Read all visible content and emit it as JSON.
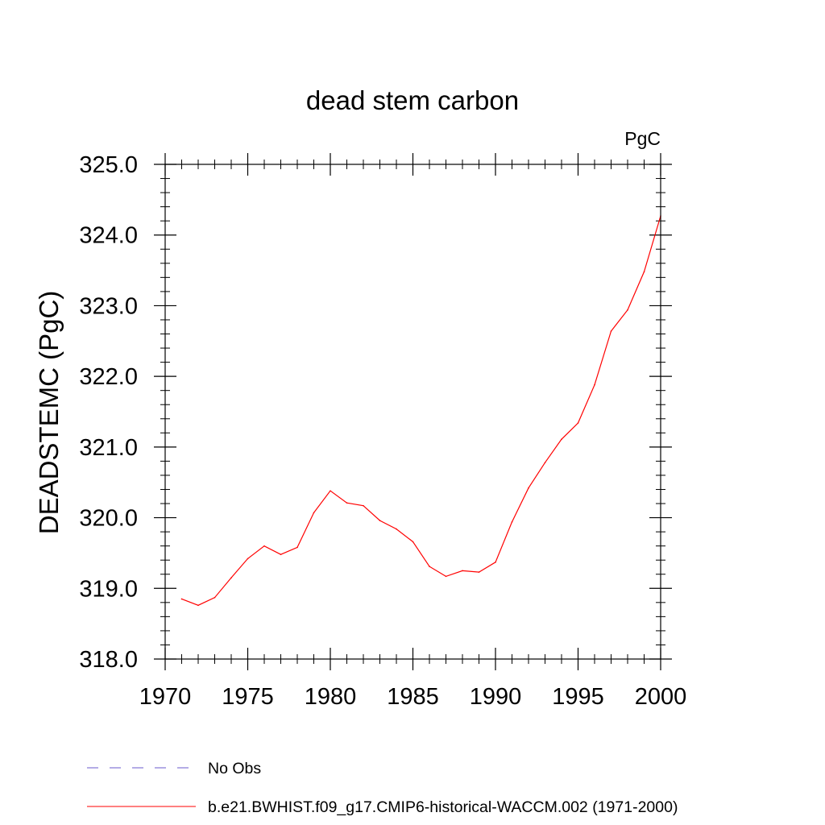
{
  "chart_data": {
    "type": "line",
    "title": "dead stem carbon",
    "units_label": "PgC",
    "xlabel": "",
    "ylabel": "DEADSTEMC  (PgC)",
    "xlim": [
      1970,
      2000
    ],
    "ylim": [
      318.0,
      325.0
    ],
    "x_ticks": [
      1970,
      1975,
      1980,
      1985,
      1990,
      1995,
      2000
    ],
    "y_ticks": [
      "318.0",
      "319.0",
      "320.0",
      "321.0",
      "322.0",
      "323.0",
      "324.0",
      "325.0"
    ],
    "grid": false,
    "legend_position": "bottom-left",
    "series": [
      {
        "name": "b.e21.BWHIST.f09_g17.CMIP6-historical-WACCM.002 (1971-2000)",
        "color": "#ff0000",
        "style": "solid",
        "x": [
          1971,
          1972,
          1973,
          1974,
          1975,
          1976,
          1977,
          1978,
          1979,
          1980,
          1981,
          1982,
          1983,
          1984,
          1985,
          1986,
          1987,
          1988,
          1989,
          1990,
          1991,
          1992,
          1993,
          1994,
          1995,
          1996,
          1997,
          1998,
          1999,
          2000
        ],
        "values": [
          318.85,
          318.76,
          318.87,
          319.15,
          319.42,
          319.6,
          319.48,
          319.58,
          320.07,
          320.38,
          320.21,
          320.17,
          319.96,
          319.84,
          319.66,
          319.31,
          319.17,
          319.25,
          319.23,
          319.37,
          319.94,
          320.42,
          320.78,
          321.11,
          321.34,
          321.88,
          322.64,
          322.94,
          323.48,
          324.27
        ]
      }
    ],
    "legend": [
      {
        "label": "No Obs",
        "color": "#6a5acd",
        "style": "dashed"
      },
      {
        "label": "b.e21.BWHIST.f09_g17.CMIP6-historical-WACCM.002 (1971-2000)",
        "color": "#ff0000",
        "style": "solid"
      }
    ]
  }
}
